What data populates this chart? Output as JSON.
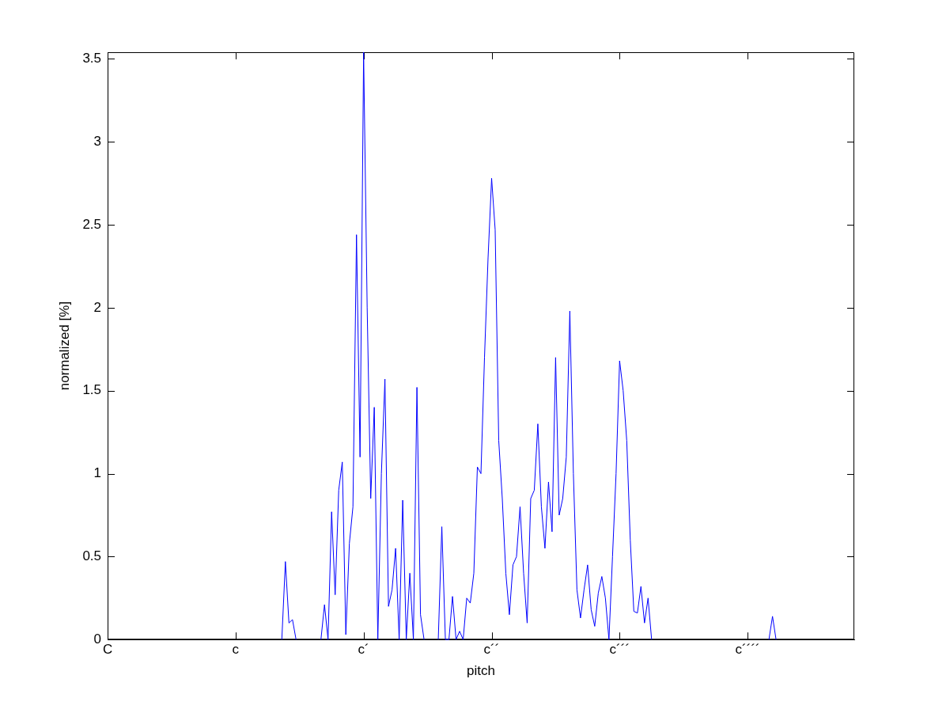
{
  "chart_data": {
    "type": "line",
    "xlabel": "pitch",
    "ylabel": "normalized [%]",
    "ylim": [
      0,
      3.54
    ],
    "yticks": [
      0,
      0.5,
      1,
      1.5,
      2,
      2.5,
      3,
      3.5
    ],
    "grid": false,
    "legend": false,
    "marker": "none",
    "line_style": "solid",
    "categories": [
      "C",
      null,
      null,
      null,
      null,
      null,
      null,
      null,
      null,
      null,
      null,
      null,
      null,
      null,
      null,
      null,
      null,
      null,
      null,
      null,
      null,
      null,
      null,
      null,
      null,
      null,
      null,
      null,
      null,
      null,
      null,
      null,
      null,
      null,
      null,
      null,
      "c",
      null,
      null,
      null,
      null,
      null,
      null,
      null,
      null,
      null,
      null,
      null,
      null,
      null,
      null,
      null,
      null,
      null,
      null,
      null,
      null,
      null,
      null,
      null,
      null,
      null,
      null,
      null,
      null,
      null,
      null,
      null,
      null,
      null,
      null,
      null,
      "c´",
      null,
      null,
      null,
      null,
      null,
      null,
      null,
      null,
      null,
      null,
      null,
      null,
      null,
      null,
      null,
      null,
      null,
      null,
      null,
      null,
      null,
      null,
      null,
      null,
      null,
      null,
      null,
      null,
      null,
      null,
      null,
      null,
      null,
      null,
      null,
      "c´´",
      null,
      null,
      null,
      null,
      null,
      null,
      null,
      null,
      null,
      null,
      null,
      null,
      null,
      null,
      null,
      null,
      null,
      null,
      null,
      null,
      null,
      null,
      null,
      null,
      null,
      null,
      null,
      null,
      null,
      null,
      null,
      null,
      null,
      null,
      null,
      "c´´´",
      null,
      null,
      null,
      null,
      null,
      null,
      null,
      null,
      null,
      null,
      null,
      null,
      null,
      null,
      null,
      null,
      null,
      null,
      null,
      null,
      null,
      null,
      null,
      null,
      null,
      null,
      null,
      null,
      null,
      null,
      null,
      null,
      null,
      null,
      null,
      "c´´´´",
      null,
      null,
      null,
      null,
      null,
      null,
      null,
      null,
      null,
      null,
      null,
      null,
      null,
      null,
      null,
      null,
      null,
      null,
      null,
      null,
      null,
      null,
      null,
      null,
      null,
      null,
      null,
      null,
      null,
      null
    ],
    "series": [
      {
        "color": "#0000ff",
        "values": [
          null,
          null,
          null,
          null,
          null,
          null,
          null,
          null,
          null,
          null,
          null,
          null,
          null,
          null,
          null,
          null,
          null,
          null,
          null,
          null,
          null,
          null,
          null,
          null,
          null,
          null,
          null,
          null,
          null,
          null,
          null,
          null,
          null,
          null,
          null,
          null,
          null,
          null,
          null,
          null,
          null,
          null,
          null,
          null,
          null,
          null,
          null,
          null,
          null,
          0,
          0.47,
          0.1,
          0.12,
          0,
          null,
          null,
          null,
          null,
          null,
          null,
          0,
          0.21,
          0,
          0.77,
          0.27,
          0.9,
          1.07,
          0.03,
          0.58,
          0.8,
          2.44,
          1.1,
          3.54,
          2.0,
          0.85,
          1.4,
          0,
          1.0,
          1.57,
          0.2,
          0.3,
          0.55,
          0,
          0.84,
          0,
          0.4,
          0,
          1.52,
          0.15,
          0,
          null,
          null,
          null,
          0,
          0.68,
          0,
          0,
          0.26,
          0,
          0.05,
          0,
          0.25,
          0.22,
          0.4,
          1.04,
          1.0,
          1.7,
          2.3,
          2.78,
          2.47,
          1.2,
          0.85,
          0.4,
          0.15,
          0.45,
          0.5,
          0.8,
          0.4,
          0.1,
          0.85,
          0.9,
          1.3,
          0.8,
          0.55,
          0.95,
          0.65,
          1.7,
          0.75,
          0.85,
          1.1,
          1.98,
          1.0,
          0.3,
          0.13,
          0.3,
          0.45,
          0.18,
          0.08,
          0.28,
          0.38,
          0.25,
          0,
          0.5,
          1.0,
          1.68,
          1.5,
          1.2,
          0.6,
          0.17,
          0.16,
          0.32,
          0.1,
          0.25,
          0,
          null,
          null,
          null,
          null,
          null,
          null,
          null,
          null,
          null,
          null,
          null,
          null,
          null,
          null,
          null,
          null,
          null,
          null,
          null,
          null,
          null,
          null,
          null,
          null,
          null,
          null,
          null,
          null,
          null,
          null,
          null,
          null,
          0,
          0.14,
          0,
          null,
          null,
          null,
          null,
          null,
          null,
          null,
          null,
          null,
          null,
          null,
          null,
          null,
          null,
          null,
          null,
          null,
          null,
          null,
          null,
          null,
          null
        ]
      }
    ]
  }
}
